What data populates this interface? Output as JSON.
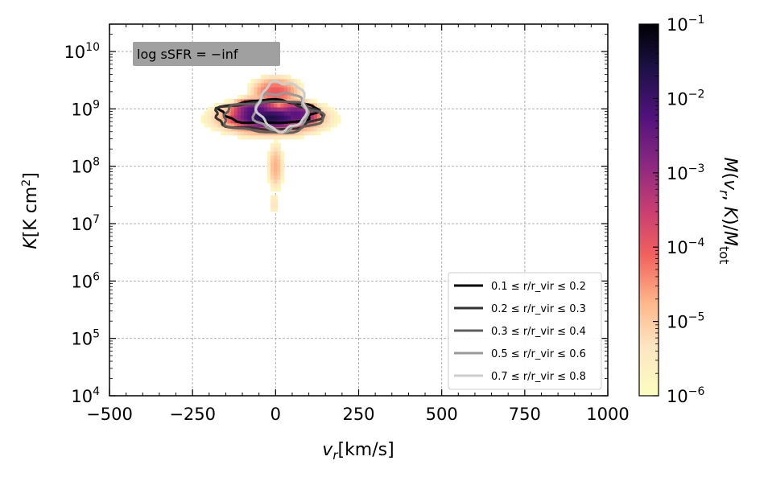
{
  "chart_data": {
    "type": "heatmap",
    "annotation": "log sSFR = −inf",
    "xlabel": "v_r [km/s]",
    "ylabel": "K [K cm²]",
    "colorbar_label": "M(v_r, K)/M_tot",
    "x_scale": "linear",
    "y_scale": "log",
    "xlim": [
      -500,
      1000
    ],
    "ylim": [
      10000.0,
      30000000000.0
    ],
    "x_ticks": [
      -500,
      -250,
      0,
      250,
      500,
      750,
      1000
    ],
    "x_tick_labels": [
      "−500",
      "−250",
      "0",
      "250",
      "500",
      "750",
      "1000"
    ],
    "y_ticks": [
      4,
      5,
      6,
      7,
      8,
      9,
      10
    ],
    "grid": true,
    "colorbar": {
      "scale": "log",
      "range": [
        1e-06,
        0.1
      ],
      "tick_exponents": [
        -6,
        -5,
        -4,
        -3,
        -2,
        -1
      ],
      "colormap": "magma_r"
    },
    "heatmap_blobs": [
      {
        "x": -20,
        "logK": 8.85,
        "sx": 85,
        "sy": 0.14,
        "level": -1.6
      },
      {
        "x": -60,
        "logK": 8.95,
        "sx": 55,
        "sy": 0.17,
        "level": -2.1
      },
      {
        "x": 60,
        "logK": 8.9,
        "sx": 55,
        "sy": 0.17,
        "level": -2.3
      },
      {
        "x": -15,
        "logK": 8.85,
        "sx": 150,
        "sy": 0.28,
        "level": -3.6
      },
      {
        "x": 0,
        "logK": 9.3,
        "sx": 70,
        "sy": 0.25,
        "level": -4.0
      },
      {
        "x": 0,
        "logK": 8.0,
        "sx": 25,
        "sy": 0.45,
        "level": -4.7
      },
      {
        "x": -5,
        "logK": 7.35,
        "sx": 20,
        "sy": 0.25,
        "level": -5.3
      }
    ],
    "legend": {
      "position": "lower right",
      "entries": [
        {
          "label": "0.1 ≤ r/r_vir ≤ 0.2",
          "color": "#000000"
        },
        {
          "label": "0.2 ≤ r/r_vir ≤ 0.3",
          "color": "#333333"
        },
        {
          "label": "0.3 ≤ r/r_vir ≤ 0.4",
          "color": "#5e5e5e"
        },
        {
          "label": "0.5 ≤ r/r_vir ≤ 0.6",
          "color": "#999999"
        },
        {
          "label": "0.7 ≤ r/r_vir ≤ 0.8",
          "color": "#cccccc"
        }
      ]
    },
    "contours": [
      {
        "color": "#000000",
        "cx": -20,
        "cy": 8.95,
        "rx": 145,
        "ry": 0.2
      },
      {
        "color": "#333333",
        "cx": -25,
        "cy": 8.88,
        "rx": 160,
        "ry": 0.24
      },
      {
        "color": "#5e5e5e",
        "cx": -10,
        "cy": 8.86,
        "rx": 150,
        "ry": 0.27
      },
      {
        "color": "#999999",
        "cx": 15,
        "cy": 8.95,
        "rx": 80,
        "ry": 0.33
      },
      {
        "color": "#cccccc",
        "cx": 20,
        "cy": 9.05,
        "rx": 72,
        "ry": 0.42
      }
    ]
  }
}
